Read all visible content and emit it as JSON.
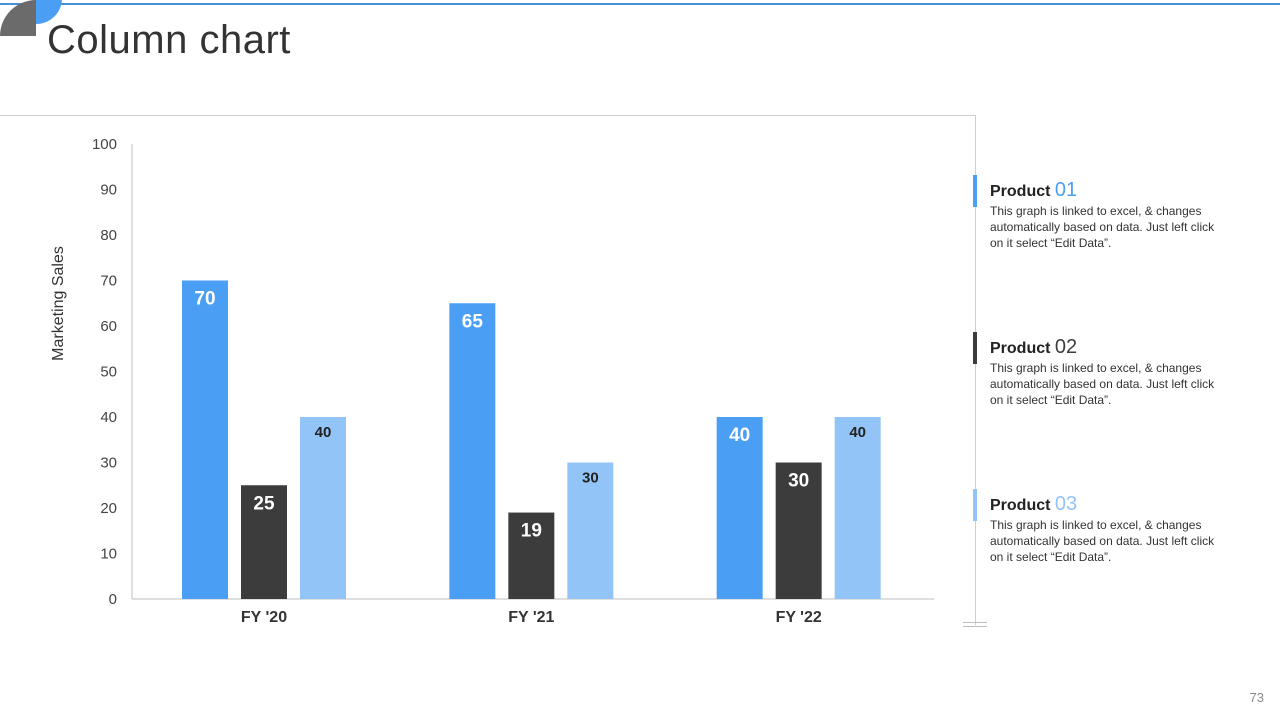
{
  "slide": {
    "title": "Column chart",
    "page_number": "73"
  },
  "colors": {
    "product_01": "#4a9ff5",
    "product_02": "#3c3c3c",
    "product_03": "#93c4f7",
    "accent": "#4a90d9"
  },
  "chart_data": {
    "type": "bar",
    "categories": [
      "FY '20",
      "FY '21",
      "FY '22"
    ],
    "series": [
      {
        "name": "Product 01",
        "values": [
          70,
          65,
          40
        ]
      },
      {
        "name": "Product 02",
        "values": [
          25,
          19,
          30
        ]
      },
      {
        "name": "Product 03",
        "values": [
          40,
          30,
          40
        ]
      }
    ],
    "ylabel": "Marketing Sales",
    "ylim": [
      0,
      100
    ],
    "yticks": [
      0,
      10,
      20,
      30,
      40,
      50,
      60,
      70,
      80,
      90,
      100
    ],
    "grid": false
  },
  "legend": [
    {
      "label": "Product",
      "number": "01",
      "description": "This graph is linked to excel, & changes automatically based on data. Just left click on it select “Edit Data”."
    },
    {
      "label": "Product",
      "number": "02",
      "description": "This graph is linked to excel, & changes automatically based on data. Just left click on it select “Edit Data”."
    },
    {
      "label": "Product",
      "number": "03",
      "description": "This graph is linked to excel, & changes automatically based on data. Just left click on it select “Edit Data”."
    }
  ]
}
